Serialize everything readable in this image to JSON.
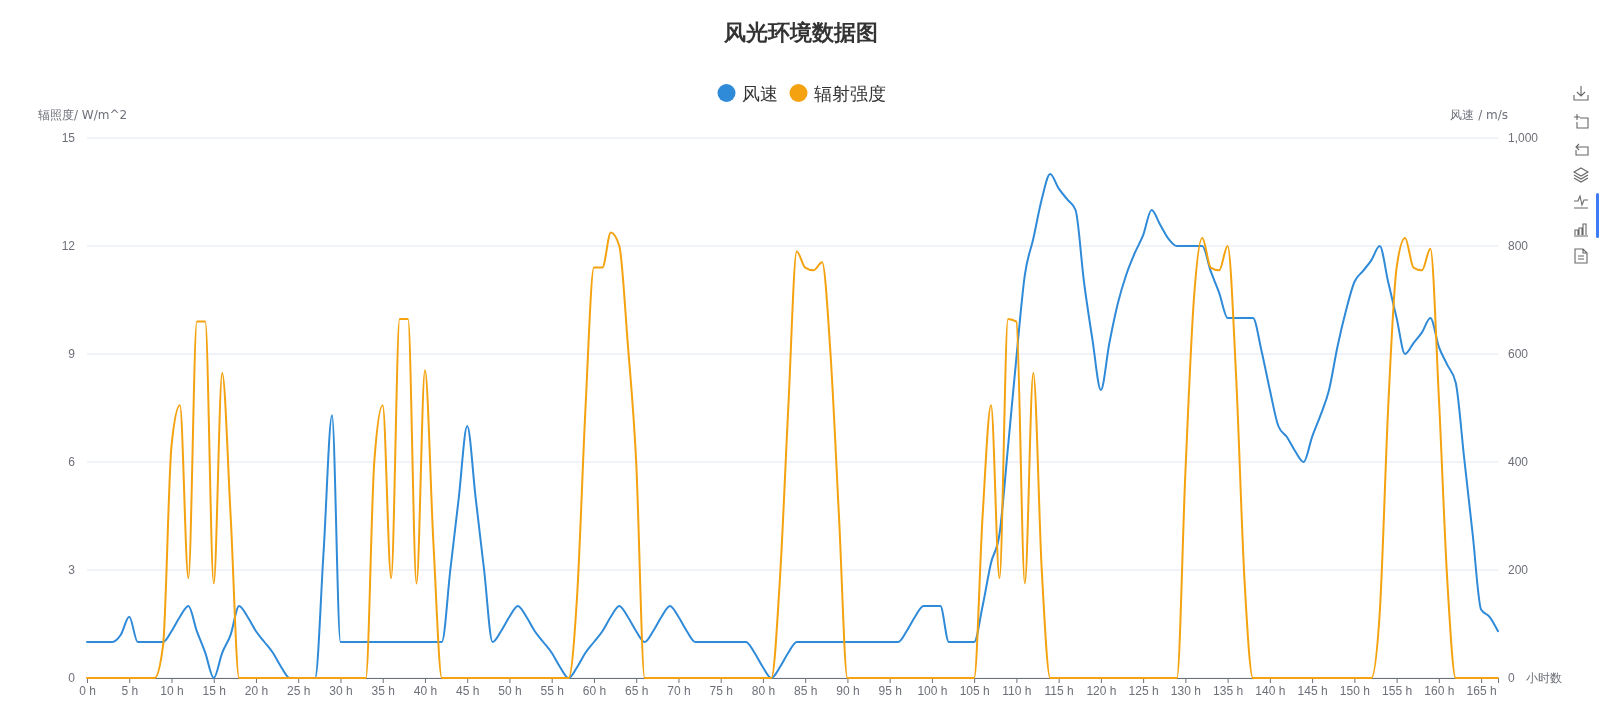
{
  "chart_data": {
    "type": "line",
    "title": "风光环境数据图",
    "xlabel": "小时数",
    "ylabel": "辐照度/ W/m^2",
    "y2label": "风速 / m/s",
    "x": [
      0,
      1,
      2,
      3,
      4,
      5,
      6,
      7,
      8,
      9,
      10,
      11,
      12,
      13,
      14,
      15,
      16,
      17,
      18,
      19,
      20,
      21,
      22,
      23,
      24,
      25,
      26,
      27,
      28,
      29,
      30,
      31,
      32,
      33,
      34,
      35,
      36,
      37,
      38,
      39,
      40,
      41,
      42,
      43,
      44,
      45,
      46,
      47,
      48,
      49,
      50,
      51,
      52,
      53,
      54,
      55,
      56,
      57,
      58,
      59,
      60,
      61,
      62,
      63,
      64,
      65,
      66,
      67,
      68,
      69,
      70,
      71,
      72,
      73,
      74,
      75,
      76,
      77,
      78,
      79,
      80,
      81,
      82,
      83,
      84,
      85,
      86,
      87,
      88,
      89,
      90,
      91,
      92,
      93,
      94,
      95,
      96,
      97,
      98,
      99,
      100,
      101,
      102,
      103,
      104,
      105,
      106,
      107,
      108,
      109,
      110,
      111,
      112,
      113,
      114,
      115,
      116,
      117,
      118,
      119,
      120,
      121,
      122,
      123,
      124,
      125,
      126,
      127,
      128,
      129,
      130,
      131,
      132,
      133,
      134,
      135,
      136,
      137,
      138,
      139,
      140,
      141,
      142,
      143,
      144,
      145,
      146,
      147,
      148,
      149,
      150,
      151,
      152,
      153,
      154,
      155,
      156,
      157,
      158,
      159,
      160,
      161,
      162,
      163,
      164,
      165,
      166,
      167
    ],
    "series": [
      {
        "name": "风速",
        "color": "#2f8ad8",
        "values": [
          1,
          1,
          1,
          1,
          1.2,
          1.7,
          1,
          1,
          1,
          1,
          1.3,
          1.7,
          2,
          1.3,
          0.7,
          0,
          0.7,
          1.2,
          2,
          1.7,
          1.3,
          1,
          0.7,
          0.3,
          0,
          0,
          0,
          0,
          3.5,
          7.3,
          1,
          1,
          1,
          1,
          1,
          1,
          1,
          1,
          1,
          1,
          1,
          1,
          1,
          3,
          5,
          7,
          5,
          3,
          1,
          1.3,
          1.7,
          2,
          1.7,
          1.3,
          1,
          0.7,
          0.3,
          0,
          0.3,
          0.7,
          1,
          1.3,
          1.7,
          2,
          1.7,
          1.3,
          1,
          1.3,
          1.7,
          2,
          1.7,
          1.3,
          1,
          1,
          1,
          1,
          1,
          1,
          1,
          0.7,
          0.3,
          0,
          0.3,
          0.7,
          1,
          1,
          1,
          1,
          1,
          1,
          1,
          1,
          1,
          1,
          1,
          1,
          1,
          1.3,
          1.7,
          2,
          2,
          2,
          1,
          1,
          1,
          1,
          2,
          3.2,
          4,
          6.4,
          8.9,
          11.2,
          12.2,
          13.3,
          14,
          13.6,
          13.3,
          13,
          11,
          9.4,
          8,
          9.3,
          10.4,
          11.2,
          11.8,
          12.3,
          13,
          12.6,
          12.2,
          12,
          12,
          12,
          12,
          11.3,
          10.7,
          10,
          10,
          10,
          10,
          9.1,
          8,
          7,
          6.7,
          6.3,
          6,
          6.7,
          7.3,
          8,
          9.2,
          10.2,
          11,
          11.3,
          11.6,
          12,
          11,
          10,
          9,
          9.3,
          9.6,
          10,
          9.2,
          8.7,
          8.2,
          6.1,
          4,
          1.9,
          1.7,
          1.3
        ]
      },
      {
        "name": "辐射强度",
        "color": "#f4a20f",
        "axis": "y2",
        "values": [
          0,
          0,
          0,
          0,
          0,
          0,
          0,
          0,
          0,
          60,
          430,
          505,
          185,
          660,
          660,
          175,
          565,
          300,
          0,
          0,
          0,
          0,
          0,
          0,
          0,
          0,
          0,
          0,
          0,
          0,
          0,
          0,
          0,
          0,
          400,
          505,
          185,
          665,
          665,
          175,
          570,
          250,
          0,
          0,
          0,
          0,
          0,
          0,
          0,
          0,
          0,
          0,
          0,
          0,
          0,
          0,
          0,
          0,
          150,
          500,
          760,
          760,
          825,
          800,
          620,
          400,
          0,
          0,
          0,
          0,
          0,
          0,
          0,
          0,
          0,
          0,
          0,
          0,
          0,
          0,
          0,
          0,
          180,
          500,
          790,
          760,
          755,
          770,
          600,
          300,
          0,
          0,
          0,
          0,
          0,
          0,
          0,
          0,
          0,
          0,
          0,
          0,
          0,
          0,
          0,
          0,
          300,
          505,
          185,
          665,
          660,
          175,
          565,
          200,
          0,
          0,
          0,
          0,
          0,
          0,
          0,
          0,
          0,
          0,
          0,
          0,
          0,
          0,
          0,
          0,
          380,
          700,
          815,
          760,
          755,
          800,
          560,
          180,
          0,
          0,
          0,
          0,
          0,
          0,
          0,
          0,
          0,
          0,
          0,
          0,
          0,
          0,
          0,
          120,
          500,
          760,
          815,
          760,
          755,
          795,
          520,
          180,
          0,
          0,
          0,
          0,
          0,
          0
        ]
      }
    ],
    "xlim": [
      0,
      167
    ],
    "xticks": [
      {
        "value": 0,
        "label": "0 h"
      },
      {
        "value": 5,
        "label": "5 h"
      },
      {
        "value": 10,
        "label": "10 h"
      },
      {
        "value": 15,
        "label": "15 h"
      },
      {
        "value": 20,
        "label": "20 h"
      },
      {
        "value": 25,
        "label": "25 h"
      },
      {
        "value": 30,
        "label": "30 h"
      },
      {
        "value": 35,
        "label": "35 h"
      },
      {
        "value": 40,
        "label": "40 h"
      },
      {
        "value": 45,
        "label": "45 h"
      },
      {
        "value": 50,
        "label": "50 h"
      },
      {
        "value": 55,
        "label": "55 h"
      },
      {
        "value": 60,
        "label": "60 h"
      },
      {
        "value": 65,
        "label": "65 h"
      },
      {
        "value": 70,
        "label": "70 h"
      },
      {
        "value": 75,
        "label": "75 h"
      },
      {
        "value": 80,
        "label": "80 h"
      },
      {
        "value": 85,
        "label": "85 h"
      },
      {
        "value": 90,
        "label": "90 h"
      },
      {
        "value": 95,
        "label": "95 h"
      },
      {
        "value": 100,
        "label": "100 h"
      },
      {
        "value": 105,
        "label": "105 h"
      },
      {
        "value": 110,
        "label": "110 h"
      },
      {
        "value": 115,
        "label": "115 h"
      },
      {
        "value": 120,
        "label": "120 h"
      },
      {
        "value": 125,
        "label": "125 h"
      },
      {
        "value": 130,
        "label": "130 h"
      },
      {
        "value": 135,
        "label": "135 h"
      },
      {
        "value": 140,
        "label": "140 h"
      },
      {
        "value": 145,
        "label": "145 h"
      },
      {
        "value": 150,
        "label": "150 h"
      },
      {
        "value": 155,
        "label": "155 h"
      },
      {
        "value": 160,
        "label": "160 h"
      },
      {
        "value": 165,
        "label": "165 h"
      }
    ],
    "ylim": [
      0,
      15
    ],
    "yticks": [
      0,
      3,
      6,
      9,
      12,
      15
    ],
    "y2lim": [
      0,
      1000
    ],
    "y2ticks": [
      0,
      200,
      400,
      600,
      800,
      {
        "value": 1000,
        "label": "1,000"
      }
    ],
    "grid": "y",
    "legend": "top",
    "marker": "none",
    "line_style": "solid"
  }
}
